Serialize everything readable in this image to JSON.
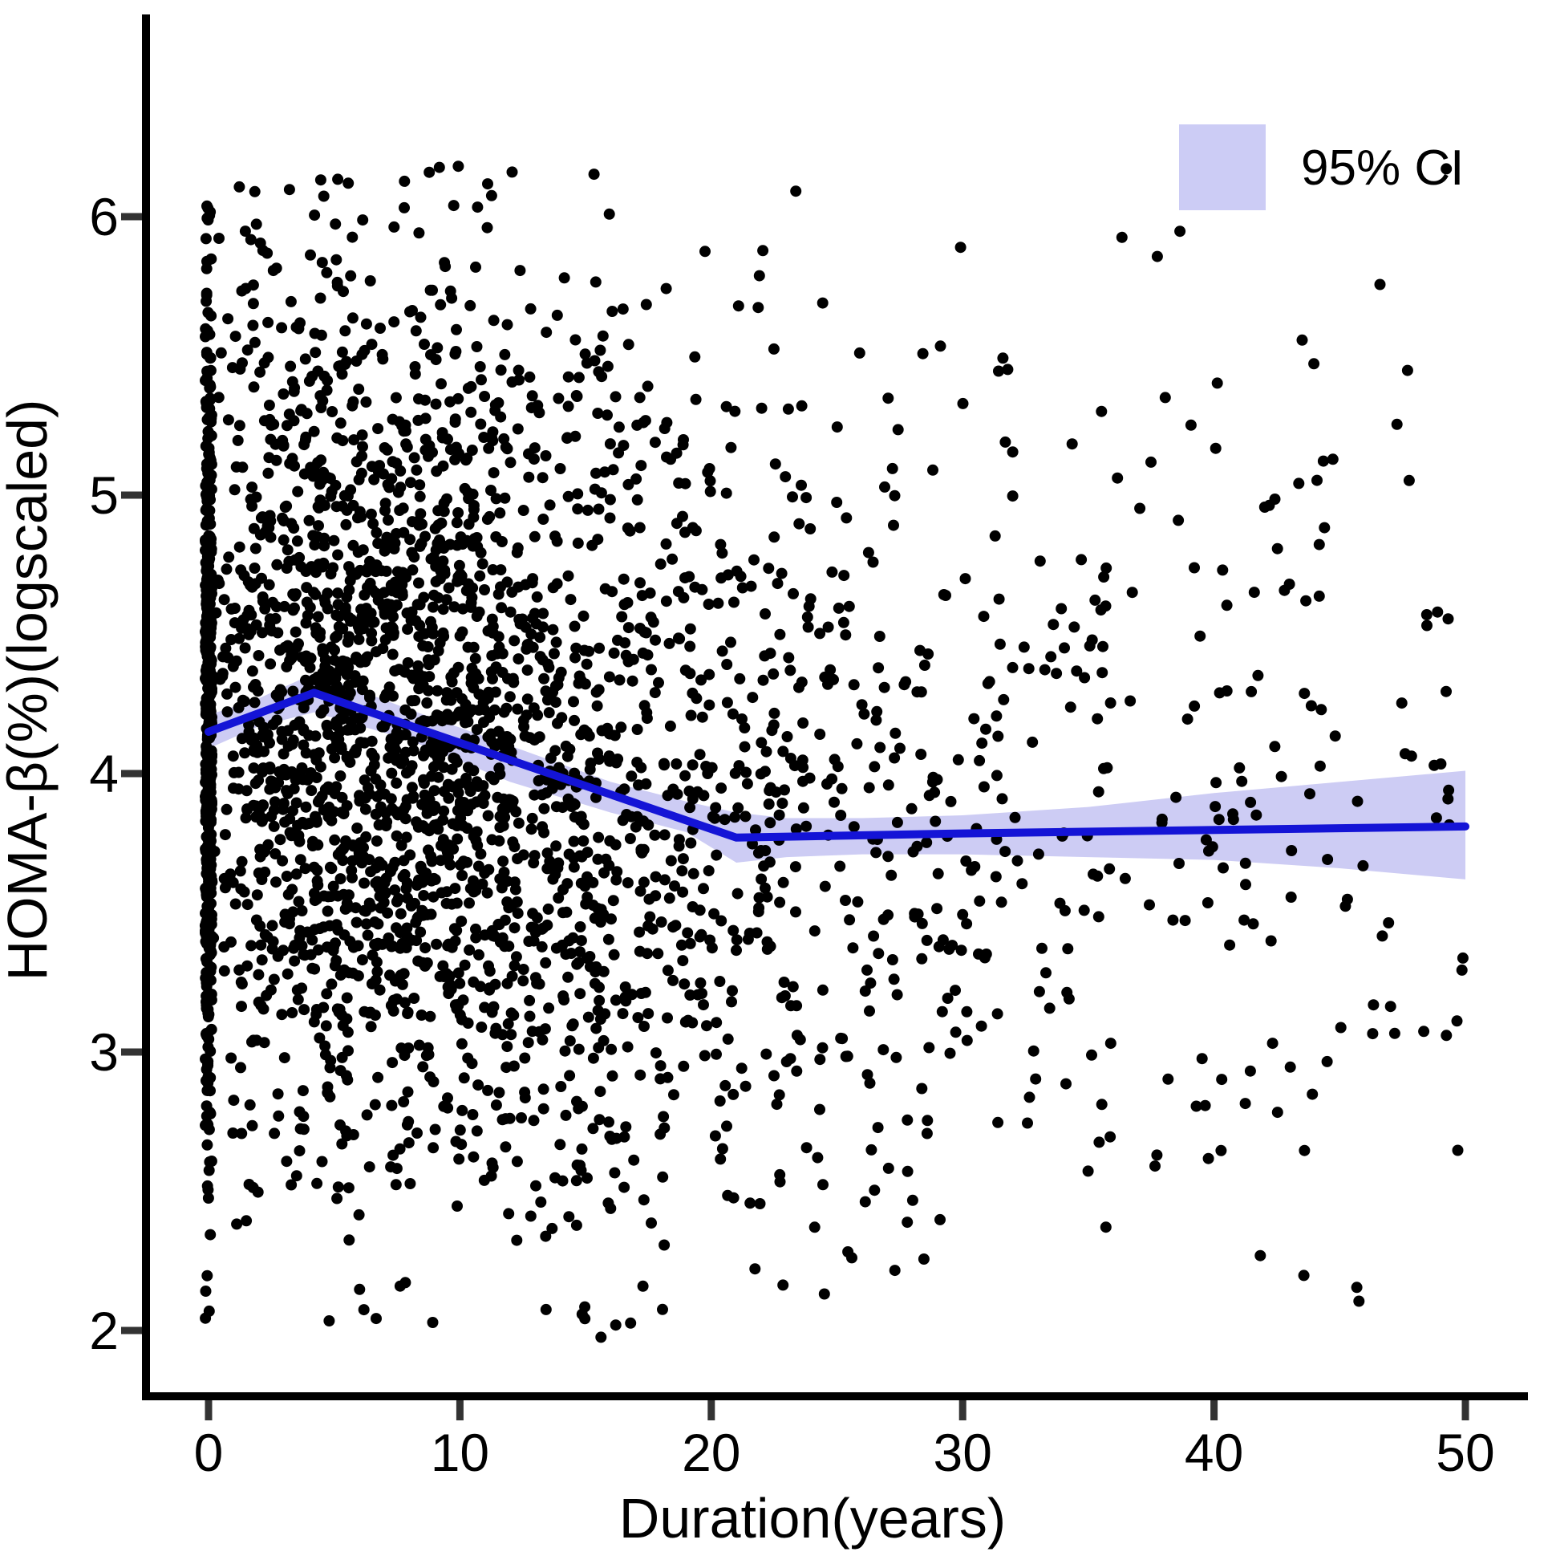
{
  "chart_data": {
    "type": "scatter",
    "title": "",
    "xlabel": "Duration(years)",
    "ylabel": "HOMA-β(%)(logscaled)",
    "x_ticks": [
      0,
      10,
      20,
      30,
      40,
      50
    ],
    "y_ticks": [
      6,
      5,
      4,
      3,
      2
    ],
    "xlim": [
      -2.5,
      52.5
    ],
    "ylim": [
      1.76,
      6.74
    ],
    "grid": "off",
    "legend": {
      "label": "95% CI",
      "swatch_color": "#ccccf5",
      "position": "top-right"
    },
    "colors": {
      "point": "#000000",
      "trend_line": "#1414d6",
      "ci_band": "#cdccf4",
      "axis_line": "#000000",
      "tick_mark": "#333333"
    },
    "trend_line": {
      "comment": "piecewise smoothed fit: rises from ~4.15 at 0y to peak ~4.29 near 4y, declines to ~3.77 at ~21y, then nearly flat/slightly rising to ~3.81 at 50y",
      "x": [
        0,
        4.2,
        21,
        30,
        50
      ],
      "y": [
        4.15,
        4.29,
        3.77,
        3.785,
        3.81
      ]
    },
    "ci_band": {
      "x": [
        0,
        2,
        4.2,
        8,
        12,
        16,
        19,
        21,
        23,
        26,
        30,
        35,
        40,
        45,
        50
      ],
      "upper": [
        4.21,
        4.27,
        4.36,
        4.23,
        4.1,
        3.97,
        3.9,
        3.86,
        3.84,
        3.84,
        3.85,
        3.88,
        3.93,
        3.97,
        4.01
      ],
      "lower": [
        4.09,
        4.17,
        4.22,
        4.12,
        3.97,
        3.86,
        3.79,
        3.68,
        3.7,
        3.71,
        3.71,
        3.7,
        3.69,
        3.66,
        3.62
      ]
    },
    "scatter": {
      "description": "Approximately 3400 individual observations (black dots). Dense vertical column at duration 0, very dense cloud 0-15 years, thinning steadily to sparse coverage at 40-50 years. Y values span ~2.0 to ~6.2, centered near 4.2 at short durations drifting to ~3.8 at long durations. Points are regenerated from a fixed-seed statistical model matching the observed density.",
      "n_points": 3400,
      "seed": 20240613,
      "x_zero_fraction": 0.14,
      "x_zero_jitter": 0.13,
      "x_erlang_scale": 5.3,
      "x_uniform_fraction": 0.15,
      "x_max": 50,
      "y_mean_anchors_x": [
        0,
        4,
        12,
        21,
        50
      ],
      "y_mean_anchors_y": [
        4.18,
        4.26,
        4.05,
        3.82,
        3.8
      ],
      "y_sd": 0.82,
      "y_min": 1.97,
      "y_max": 6.22,
      "point_radius": 7
    }
  }
}
